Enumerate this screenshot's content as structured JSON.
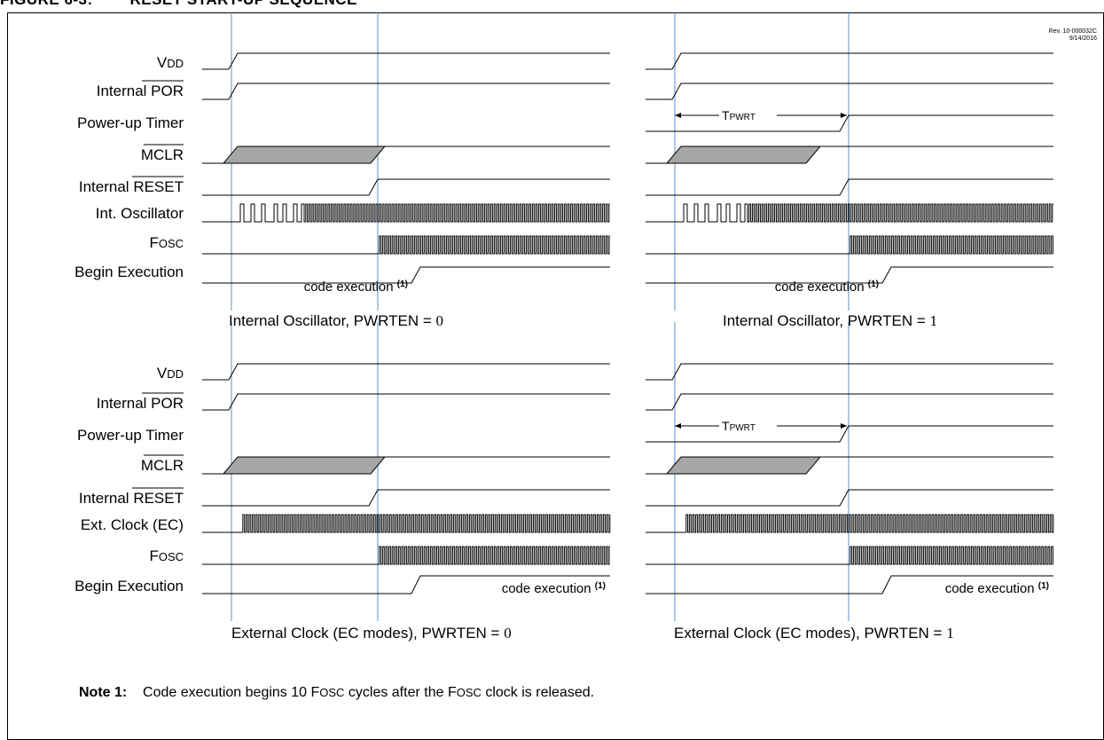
{
  "figure": {
    "title": "FIGURE 6-3:        RESET START-UP SEQUENCE",
    "revision": "Rev. 10-000032C",
    "revision_date": "9/14/2016"
  },
  "signals_top": {
    "vdd": [
      "V",
      "DD"
    ],
    "por": [
      "Internal ",
      "POR"
    ],
    "pwrt": "Power-up Timer",
    "mclr": "MCLR",
    "reset": [
      "Internal ",
      "RESET"
    ],
    "osc": "Int. Oscillator",
    "fosc": [
      "F",
      "OSC"
    ],
    "exec": "Begin Execution"
  },
  "signals_bottom": {
    "vdd": [
      "V",
      "DD"
    ],
    "por": [
      "Internal ",
      "POR"
    ],
    "pwrt": "Power-up Timer",
    "mclr": "MCLR",
    "reset": [
      "Internal ",
      "RESET"
    ],
    "osc": "Ext. Clock (EC)",
    "fosc": [
      "F",
      "OSC"
    ],
    "exec": "Begin Execution"
  },
  "annotations": {
    "tpwrt": [
      "T",
      "PWRT"
    ],
    "code_execution": "code execution ",
    "footnote_ref": "(1)"
  },
  "captions": {
    "top_left": [
      "Internal Oscillator, PWRTEN = ",
      "0"
    ],
    "top_right": [
      "Internal Oscillator, PWRTEN = ",
      "1"
    ],
    "bottom_left": [
      "External Clock (EC modes), PWRTEN = ",
      "0"
    ],
    "bottom_right": [
      "External Clock (EC modes), PWRTEN = ",
      "1"
    ]
  },
  "note": {
    "label": "Note 1:",
    "text_parts": [
      "Code execution begins 10 ",
      "F",
      "OSC",
      " cycles after the ",
      "F",
      "OSC",
      " clock is released."
    ]
  },
  "colors": {
    "marker_line": "#5b8fc7",
    "mclr_fill": "#a6a6a6",
    "wave": "#000000"
  }
}
